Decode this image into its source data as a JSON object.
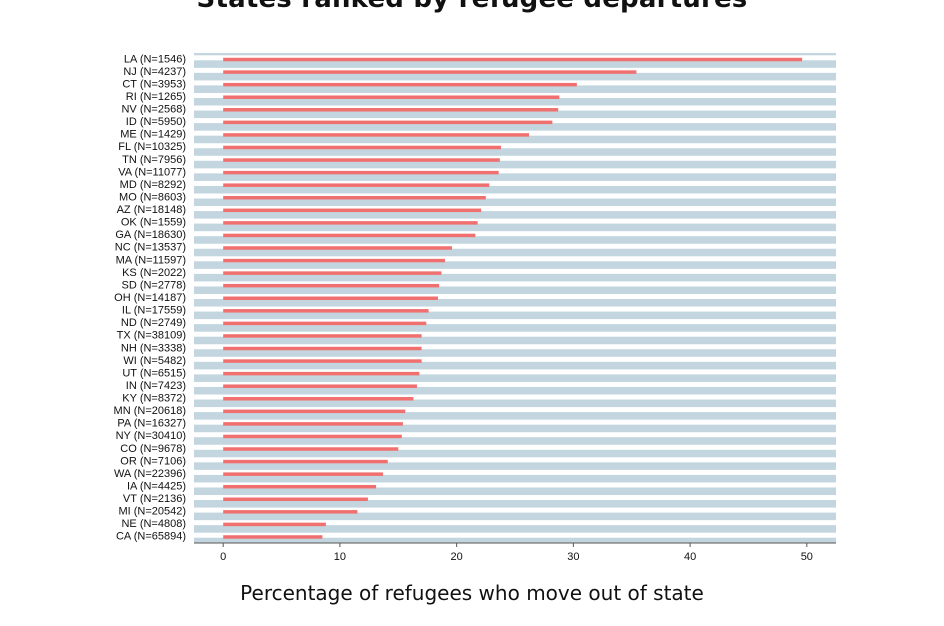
{
  "chart_data": {
    "type": "bar",
    "orientation": "horizontal",
    "title": "States ranked by refugee departures",
    "xlabel": "Percentage of refugees who move out of state",
    "ylabel": "",
    "xlim": [
      -2.5,
      52.5
    ],
    "xticks": [
      0,
      10,
      20,
      30,
      40,
      50
    ],
    "grid": false,
    "colors": {
      "bar": "#f07070",
      "panel": "#c3d6e0",
      "separator": "#ffffff"
    },
    "categories": [
      "LA (N=1546)",
      "NJ (N=4237)",
      "CT (N=3953)",
      "RI (N=1265)",
      "NV (N=2568)",
      "ID (N=5950)",
      "ME (N=1429)",
      "FL (N=10325)",
      "TN (N=7956)",
      "VA (N=11077)",
      "MD (N=8292)",
      "MO (N=8603)",
      "AZ (N=18148)",
      "OK (N=1559)",
      "GA (N=18630)",
      "NC (N=13537)",
      "MA (N=11597)",
      "KS (N=2022)",
      "SD (N=2778)",
      "OH (N=14187)",
      "IL (N=17559)",
      "ND (N=2749)",
      "TX (N=38109)",
      "NH (N=3338)",
      "WI (N=5482)",
      "UT (N=6515)",
      "IN (N=7423)",
      "KY (N=8372)",
      "MN (N=20618)",
      "PA (N=16327)",
      "NY (N=30410)",
      "CO (N=9678)",
      "OR (N=7106)",
      "WA (N=22396)",
      "IA (N=4425)",
      "VT (N=2136)",
      "MI (N=20542)",
      "NE (N=4808)",
      "CA (N=65894)"
    ],
    "values": [
      49.6,
      35.4,
      30.3,
      28.8,
      28.7,
      28.2,
      26.2,
      23.8,
      23.7,
      23.6,
      22.8,
      22.5,
      22.1,
      21.8,
      21.6,
      19.6,
      19.0,
      18.7,
      18.5,
      18.4,
      17.6,
      17.4,
      17.0,
      17.0,
      17.0,
      16.8,
      16.6,
      16.3,
      15.6,
      15.4,
      15.3,
      15.0,
      14.1,
      13.7,
      13.1,
      12.4,
      11.5,
      8.8,
      8.5
    ]
  }
}
